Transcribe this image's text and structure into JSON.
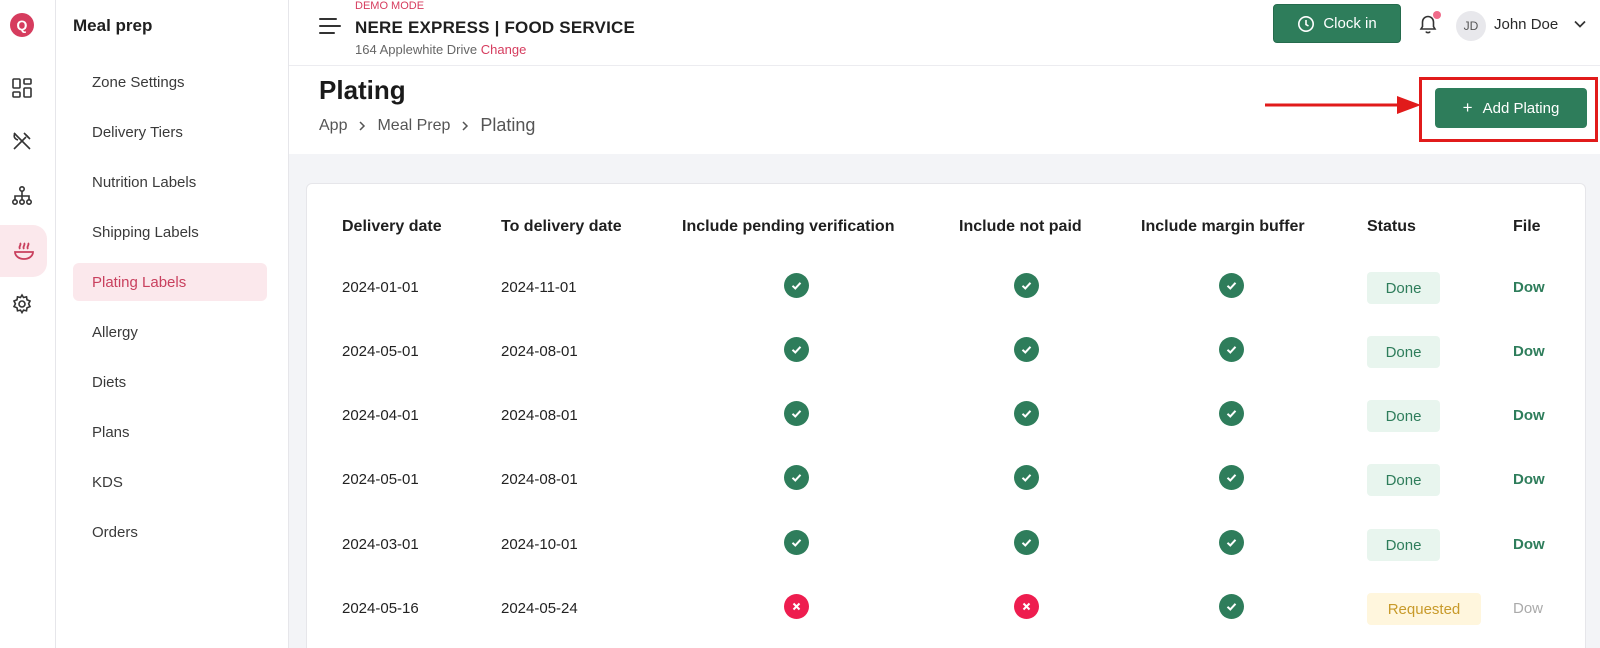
{
  "rail": {
    "logo": "Q",
    "icons": [
      "dashboard-icon",
      "utensils-icon",
      "hierarchy-icon",
      "meal-prep-icon",
      "settings-icon"
    ]
  },
  "sidebar": {
    "title": "Meal prep",
    "items": [
      {
        "label": "Zone Settings"
      },
      {
        "label": "Delivery Tiers"
      },
      {
        "label": "Nutrition Labels"
      },
      {
        "label": "Shipping Labels"
      },
      {
        "label": "Plating Labels",
        "active": true
      },
      {
        "label": "Allergy"
      },
      {
        "label": "Diets"
      },
      {
        "label": "Plans"
      },
      {
        "label": "KDS"
      },
      {
        "label": "Orders"
      }
    ]
  },
  "header": {
    "demo_mode": "DEMO MODE",
    "company": "NERE EXPRESS | FOOD SERVICE",
    "address": "164 Applewhite Drive",
    "change": "Change",
    "clock_in": "Clock in",
    "user_initials": "JD",
    "user_name": "John Doe"
  },
  "page": {
    "title": "Plating",
    "breadcrumb": [
      "App",
      "Meal Prep",
      "Plating"
    ],
    "add_button": "Add Plating"
  },
  "table": {
    "columns": [
      "Delivery date",
      "To delivery date",
      "Include pending verification",
      "Include not paid",
      "Include margin buffer",
      "Status",
      "File"
    ],
    "rows": [
      {
        "delivery": "2024-01-01",
        "to_delivery": "2024-11-01",
        "pending": true,
        "not_paid": true,
        "margin": true,
        "status": "Done",
        "file": "Dow"
      },
      {
        "delivery": "2024-05-01",
        "to_delivery": "2024-08-01",
        "pending": true,
        "not_paid": true,
        "margin": true,
        "status": "Done",
        "file": "Dow"
      },
      {
        "delivery": "2024-04-01",
        "to_delivery": "2024-08-01",
        "pending": true,
        "not_paid": true,
        "margin": true,
        "status": "Done",
        "file": "Dow"
      },
      {
        "delivery": "2024-05-01",
        "to_delivery": "2024-08-01",
        "pending": true,
        "not_paid": true,
        "margin": true,
        "status": "Done",
        "file": "Dow"
      },
      {
        "delivery": "2024-03-01",
        "to_delivery": "2024-10-01",
        "pending": true,
        "not_paid": true,
        "margin": true,
        "status": "Done",
        "file": "Dow"
      },
      {
        "delivery": "2024-05-16",
        "to_delivery": "2024-05-24",
        "pending": false,
        "not_paid": false,
        "margin": true,
        "status": "Requested",
        "file": "Dow"
      }
    ]
  },
  "colors": {
    "brand": "#2e7d5b",
    "accent": "#d63c5e",
    "highlight": "#e11b1b"
  }
}
